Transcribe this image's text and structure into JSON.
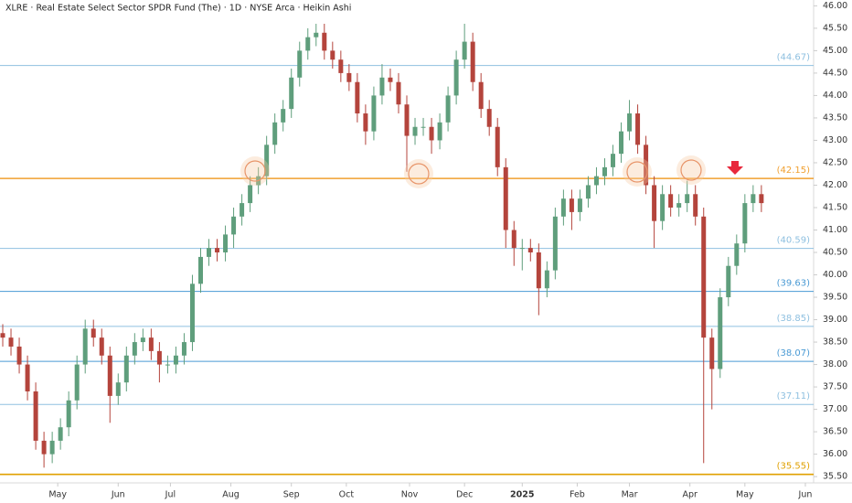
{
  "chart_data": {
    "type": "candlestick",
    "title": "XLRE · Real Estate Select Sector SPDR Fund (The) · 1D · NYSE Arca · Heikin Ashi",
    "up_color": "#5f9e7c",
    "down_color": "#b4443c",
    "x": [
      0,
      3,
      6,
      9,
      12,
      15,
      18,
      21,
      24,
      27,
      30,
      33,
      36,
      39,
      42,
      45,
      48,
      51,
      54,
      57,
      60,
      63,
      66,
      69,
      72,
      75,
      78,
      81,
      84,
      87,
      90,
      93,
      96,
      99,
      102,
      105,
      108,
      111,
      114,
      117,
      120,
      123,
      126,
      129,
      132,
      135,
      138,
      141,
      144,
      147,
      150,
      153,
      156,
      159,
      162,
      165,
      168,
      171,
      174,
      177,
      180,
      183,
      186,
      189,
      192,
      195,
      198,
      201,
      204,
      207,
      210,
      213,
      216,
      219,
      222,
      225,
      228,
      231,
      234,
      237,
      240,
      243,
      246,
      249,
      252,
      255,
      258,
      261,
      264,
      267,
      270,
      273,
      276
    ],
    "open": [
      38.7,
      38.6,
      38.4,
      38.0,
      37.4,
      36.3,
      36.0,
      36.3,
      36.6,
      37.2,
      38.0,
      38.8,
      38.6,
      38.2,
      37.3,
      37.6,
      38.2,
      38.5,
      38.6,
      38.3,
      38.0,
      38.0,
      38.2,
      38.5,
      39.8,
      40.4,
      40.6,
      40.5,
      40.9,
      41.3,
      41.6,
      42.0,
      42.2,
      42.9,
      43.4,
      43.7,
      44.4,
      45.0,
      45.3,
      45.4,
      45.0,
      44.8,
      44.5,
      44.3,
      43.6,
      43.2,
      44.0,
      44.4,
      44.3,
      43.8,
      43.1,
      43.3,
      43.3,
      43.0,
      43.4,
      44.0,
      44.8,
      45.2,
      44.3,
      43.7,
      43.3,
      42.4,
      41.0,
      40.6,
      40.6,
      40.5,
      39.7,
      40.1,
      41.3,
      41.7,
      41.4,
      41.7,
      42.0,
      42.2,
      42.4,
      42.7,
      43.2,
      43.6,
      42.9,
      42.0,
      41.2,
      41.8,
      41.5,
      41.6,
      41.8,
      41.3,
      38.6,
      37.9,
      39.5,
      40.2,
      40.7,
      41.6,
      41.8
    ],
    "high": [
      38.9,
      38.8,
      38.6,
      38.2,
      37.6,
      36.5,
      36.5,
      36.8,
      37.4,
      38.2,
      39.0,
      39.0,
      38.8,
      38.4,
      37.8,
      38.4,
      38.7,
      38.8,
      38.8,
      38.5,
      38.2,
      38.4,
      38.7,
      40.0,
      40.6,
      40.8,
      40.8,
      41.1,
      41.5,
      41.8,
      42.2,
      42.4,
      43.1,
      43.6,
      43.9,
      44.6,
      45.2,
      45.5,
      45.6,
      45.6,
      45.2,
      45.0,
      44.7,
      44.5,
      43.8,
      44.2,
      44.7,
      44.6,
      44.5,
      44.0,
      43.5,
      43.5,
      43.5,
      43.6,
      44.2,
      45.0,
      45.6,
      45.4,
      44.5,
      43.9,
      43.5,
      42.6,
      41.2,
      40.8,
      40.8,
      40.7,
      40.3,
      41.5,
      41.9,
      41.9,
      41.9,
      42.2,
      42.4,
      42.6,
      42.9,
      43.4,
      43.9,
      43.8,
      43.1,
      42.2,
      42.0,
      42.0,
      41.8,
      42.1,
      42.0,
      41.5,
      38.8,
      39.7,
      40.4,
      40.9,
      41.8,
      42.0,
      42.0
    ],
    "low": [
      38.4,
      38.2,
      37.8,
      37.2,
      36.1,
      35.7,
      35.8,
      36.1,
      36.4,
      37.0,
      37.8,
      38.4,
      38.0,
      36.7,
      37.1,
      37.4,
      38.0,
      38.3,
      38.1,
      37.6,
      37.8,
      37.8,
      38.0,
      38.3,
      39.6,
      40.2,
      40.3,
      40.3,
      40.6,
      41.1,
      41.4,
      41.8,
      42.0,
      42.7,
      43.2,
      43.5,
      44.2,
      44.8,
      45.1,
      44.8,
      44.6,
      44.3,
      44.1,
      43.4,
      42.9,
      43.0,
      43.8,
      44.1,
      43.6,
      42.3,
      42.9,
      43.1,
      42.7,
      42.8,
      43.2,
      43.8,
      44.6,
      44.1,
      43.5,
      43.1,
      42.2,
      40.6,
      40.2,
      40.1,
      40.3,
      39.1,
      39.5,
      39.9,
      41.1,
      41.0,
      41.2,
      41.5,
      41.8,
      42.0,
      42.2,
      42.5,
      43.0,
      42.7,
      41.8,
      40.6,
      41.0,
      41.3,
      41.3,
      41.4,
      41.1,
      35.8,
      37.0,
      37.7,
      39.3,
      40.0,
      40.5,
      41.4,
      41.4
    ],
    "close": [
      38.6,
      38.4,
      38.0,
      37.4,
      36.3,
      36.0,
      36.3,
      36.6,
      37.2,
      38.0,
      38.8,
      38.6,
      38.2,
      37.3,
      37.6,
      38.2,
      38.5,
      38.6,
      38.3,
      38.0,
      38.0,
      38.2,
      38.5,
      39.8,
      40.4,
      40.6,
      40.5,
      40.9,
      41.3,
      41.6,
      42.0,
      42.2,
      42.9,
      43.4,
      43.7,
      44.4,
      45.0,
      45.3,
      45.4,
      45.0,
      44.8,
      44.5,
      44.3,
      43.6,
      43.2,
      44.0,
      44.4,
      44.3,
      43.8,
      43.1,
      43.3,
      43.3,
      43.0,
      43.4,
      44.0,
      44.8,
      45.2,
      44.3,
      43.7,
      43.3,
      42.4,
      41.0,
      40.6,
      40.6,
      40.5,
      39.7,
      40.1,
      41.3,
      41.7,
      41.4,
      41.7,
      42.0,
      42.2,
      42.4,
      42.7,
      43.2,
      43.6,
      42.9,
      42.0,
      41.2,
      41.8,
      41.5,
      41.6,
      41.8,
      41.3,
      38.6,
      37.9,
      39.5,
      40.2,
      40.7,
      41.6,
      41.8,
      41.6
    ],
    "xlim": [
      -1,
      295
    ],
    "xticks": [
      {
        "value": 20,
        "label": "May"
      },
      {
        "value": 42,
        "label": "Jun"
      },
      {
        "value": 61,
        "label": "Jul"
      },
      {
        "value": 83,
        "label": "Aug"
      },
      {
        "value": 105,
        "label": "Sep"
      },
      {
        "value": 125,
        "label": "Oct"
      },
      {
        "value": 148,
        "label": "Nov"
      },
      {
        "value": 168,
        "label": "Dec"
      },
      {
        "value": 189,
        "label": "2025"
      },
      {
        "value": 209,
        "label": "Feb"
      },
      {
        "value": 228,
        "label": "Mar"
      },
      {
        "value": 250,
        "label": "Apr"
      },
      {
        "value": 270,
        "label": "May"
      },
      {
        "value": 292,
        "label": "Jun"
      }
    ],
    "ylim": [
      35.36,
      46.13
    ],
    "yticks": [
      {
        "value": 35.5,
        "label": "35.50"
      },
      {
        "value": 36,
        "label": "36.00"
      },
      {
        "value": 36.5,
        "label": "36.50"
      },
      {
        "value": 37,
        "label": "37.00"
      },
      {
        "value": 37.5,
        "label": "37.50"
      },
      {
        "value": 38,
        "label": "38.00"
      },
      {
        "value": 38.5,
        "label": "38.50"
      },
      {
        "value": 39,
        "label": "39.00"
      },
      {
        "value": 39.5,
        "label": "39.50"
      },
      {
        "value": 40,
        "label": "40.00"
      },
      {
        "value": 40.5,
        "label": "40.50"
      },
      {
        "value": 41,
        "label": "41.00"
      },
      {
        "value": 41.5,
        "label": "41.50"
      },
      {
        "value": 42,
        "label": "42.00"
      },
      {
        "value": 42.5,
        "label": "42.50"
      },
      {
        "value": 43,
        "label": "43.00"
      },
      {
        "value": 43.5,
        "label": "43.50"
      },
      {
        "value": 44,
        "label": "44.00"
      },
      {
        "value": 44.5,
        "label": "44.50"
      },
      {
        "value": 45,
        "label": "45.00"
      },
      {
        "value": 45.5,
        "label": "45.50"
      },
      {
        "value": 46,
        "label": "46.00"
      }
    ],
    "levels": [
      {
        "value": 44.67,
        "label": "(44.67)",
        "color": "#8fc0e0"
      },
      {
        "value": 42.15,
        "label": "(42.15)",
        "color": "#f0a030"
      },
      {
        "value": 40.59,
        "label": "(40.59)",
        "color": "#8fc0e0"
      },
      {
        "value": 39.63,
        "label": "(39.63)",
        "color": "#4a9ad4"
      },
      {
        "value": 38.85,
        "label": "(38.85)",
        "color": "#8fc0e0"
      },
      {
        "value": 38.07,
        "label": "(38.07)",
        "color": "#4a9ad4"
      },
      {
        "value": 37.11,
        "label": "(37.11)",
        "color": "#8fc0e0"
      },
      {
        "value": 35.55,
        "label": "(35.55)",
        "color": "#e0a000"
      }
    ]
  }
}
